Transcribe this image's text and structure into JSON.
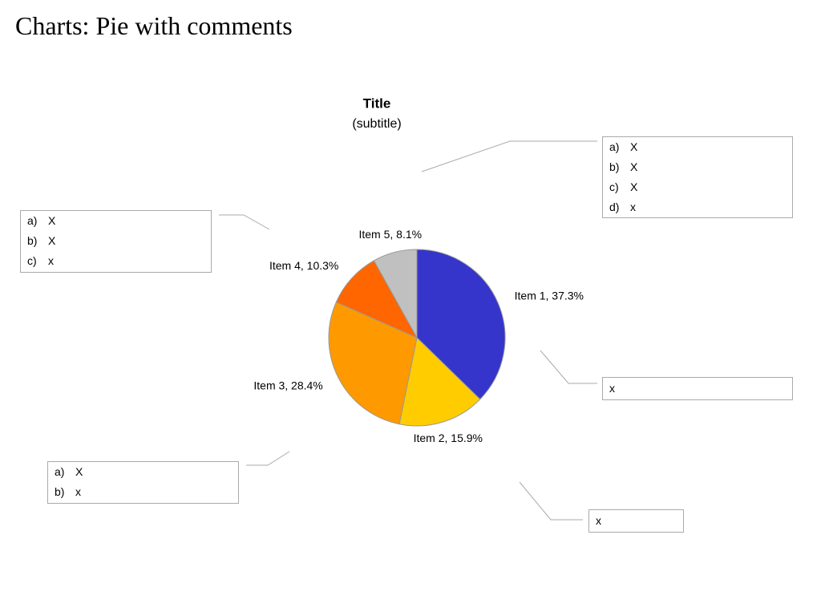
{
  "title": "Charts: Pie with comments",
  "chart_data": {
    "type": "pie",
    "title": "Title",
    "subtitle": "(subtitle)",
    "values": [
      37.3,
      15.9,
      28.4,
      10.3,
      8.1
    ],
    "value_labels": [
      "Item 1, 37.3%",
      "Item 2, 15.9%",
      "Item 3, 28.4%",
      "Item 4, 10.3%",
      "Item 5, 8.1%"
    ],
    "colors": [
      "#3535cc",
      "#ffcc00",
      "#ff9900",
      "#ff6600",
      "#c0c0c0"
    ]
  },
  "comments": [
    {
      "items": [
        {
          "marker": "a)",
          "text": "X"
        },
        {
          "marker": "b)",
          "text": "X"
        },
        {
          "marker": "c)",
          "text": "X"
        },
        {
          "marker": "d)",
          "text": "x"
        }
      ]
    },
    {
      "items": [
        {
          "marker": "a)",
          "text": "X"
        },
        {
          "marker": "b)",
          "text": "X"
        },
        {
          "marker": "c)",
          "text": "x"
        }
      ]
    },
    {
      "items": [
        {
          "text": "x"
        }
      ]
    },
    {
      "items": [
        {
          "marker": "a)",
          "text": "X"
        },
        {
          "marker": "b)",
          "text": "x"
        }
      ]
    },
    {
      "items": [
        {
          "text": "x"
        }
      ]
    }
  ]
}
